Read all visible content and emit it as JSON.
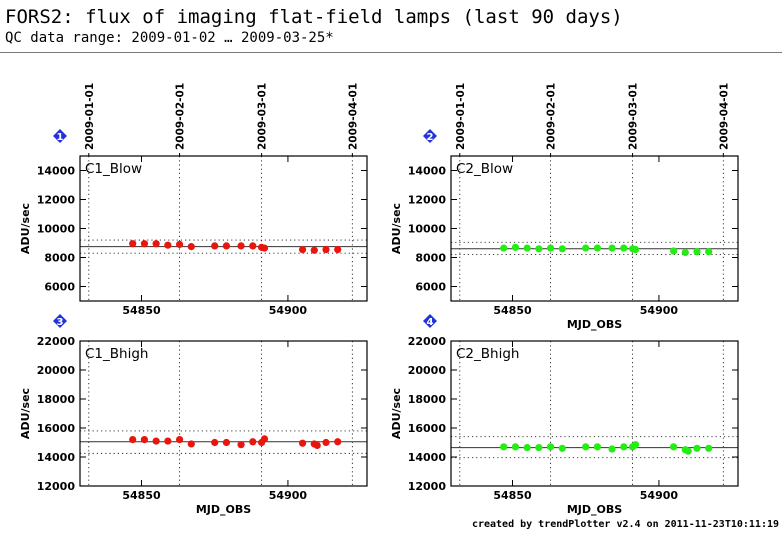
{
  "header": {
    "title": "FORS2: flux of imaging flat-field lamps (last 90 days)",
    "subtitle": "QC data range: 2009-01-02 … 2009-03-25*"
  },
  "footer": "created by trendPlotter v2.4 on 2011-11-23T10:11:19",
  "colors": {
    "series_a": "#e8160c",
    "series_b": "#22ee11",
    "badge": "#2233dd"
  },
  "chart_data": [
    {
      "type": "scatter",
      "badge": "1",
      "panel_label": "C1_Blow",
      "xlabel": "",
      "ylabel": "ADU/sec",
      "xlim": [
        54829,
        54927
      ],
      "ylim": [
        5000,
        15000
      ],
      "xticks": [
        54850,
        54900
      ],
      "yticks": [
        6000,
        8000,
        10000,
        12000,
        14000
      ],
      "top_dates": [
        "2009-01-01",
        "2009-02-01",
        "2009-03-01",
        "2009-04-01"
      ],
      "date_mjd": [
        54832,
        54863,
        54891,
        54922
      ],
      "mean": 8750,
      "band": [
        8300,
        9200
      ],
      "color": "#e8160c",
      "x": [
        54847,
        54851,
        54855,
        54859,
        54863,
        54867,
        54875,
        54879,
        54884,
        54888,
        54891,
        54892,
        54905,
        54909,
        54913,
        54917
      ],
      "y": [
        8950,
        8950,
        8950,
        8850,
        8900,
        8750,
        8800,
        8800,
        8800,
        8800,
        8700,
        8650,
        8550,
        8500,
        8550,
        8550
      ]
    },
    {
      "type": "scatter",
      "badge": "2",
      "panel_label": "C2_Blow",
      "xlabel": "MJD_OBS",
      "ylabel": "ADU/sec",
      "xlim": [
        54829,
        54927
      ],
      "ylim": [
        5000,
        15000
      ],
      "xticks": [
        54850,
        54900
      ],
      "yticks": [
        6000,
        8000,
        10000,
        12000,
        14000
      ],
      "top_dates": [
        "2009-01-01",
        "2009-02-01",
        "2009-03-01",
        "2009-04-01"
      ],
      "date_mjd": [
        54832,
        54863,
        54891,
        54922
      ],
      "mean": 8600,
      "band": [
        8200,
        9050
      ],
      "color": "#22ee11",
      "x": [
        54847,
        54851,
        54855,
        54859,
        54863,
        54867,
        54875,
        54879,
        54884,
        54888,
        54891,
        54892,
        54905,
        54909,
        54913,
        54917
      ],
      "y": [
        8650,
        8700,
        8650,
        8600,
        8650,
        8600,
        8650,
        8650,
        8650,
        8650,
        8600,
        8550,
        8450,
        8350,
        8400,
        8400
      ]
    },
    {
      "type": "scatter",
      "badge": "3",
      "panel_label": "C1_Bhigh",
      "xlabel": "MJD_OBS",
      "ylabel": "ADU/sec",
      "xlim": [
        54829,
        54927
      ],
      "ylim": [
        12000,
        22000
      ],
      "xticks": [
        54850,
        54900
      ],
      "yticks": [
        12000,
        14000,
        16000,
        18000,
        20000,
        22000
      ],
      "top_dates": [],
      "date_mjd": [
        54832,
        54863,
        54891,
        54922
      ],
      "mean": 15050,
      "band": [
        14250,
        15800
      ],
      "color": "#e8160c",
      "x": [
        54847,
        54851,
        54855,
        54859,
        54863,
        54867,
        54875,
        54879,
        54884,
        54888,
        54891,
        54892,
        54905,
        54909,
        54910,
        54913,
        54917
      ],
      "y": [
        15200,
        15200,
        15100,
        15100,
        15200,
        14900,
        15000,
        15000,
        14850,
        15050,
        15000,
        15250,
        14950,
        14900,
        14800,
        15000,
        15050
      ]
    },
    {
      "type": "scatter",
      "badge": "4",
      "panel_label": "C2_Bhigh",
      "xlabel": "MJD_OBS",
      "ylabel": "ADU/sec",
      "xlim": [
        54829,
        54927
      ],
      "ylim": [
        12000,
        22000
      ],
      "xticks": [
        54850,
        54900
      ],
      "yticks": [
        12000,
        14000,
        16000,
        18000,
        20000,
        22000
      ],
      "top_dates": [],
      "date_mjd": [
        54832,
        54863,
        54891,
        54922
      ],
      "mean": 14650,
      "band": [
        13950,
        15400
      ],
      "color": "#22ee11",
      "x": [
        54847,
        54851,
        54855,
        54859,
        54863,
        54867,
        54875,
        54879,
        54884,
        54888,
        54891,
        54892,
        54905,
        54909,
        54910,
        54913,
        54917
      ],
      "y": [
        14700,
        14700,
        14650,
        14650,
        14700,
        14600,
        14700,
        14700,
        14550,
        14700,
        14700,
        14850,
        14700,
        14500,
        14400,
        14600,
        14600
      ]
    }
  ]
}
